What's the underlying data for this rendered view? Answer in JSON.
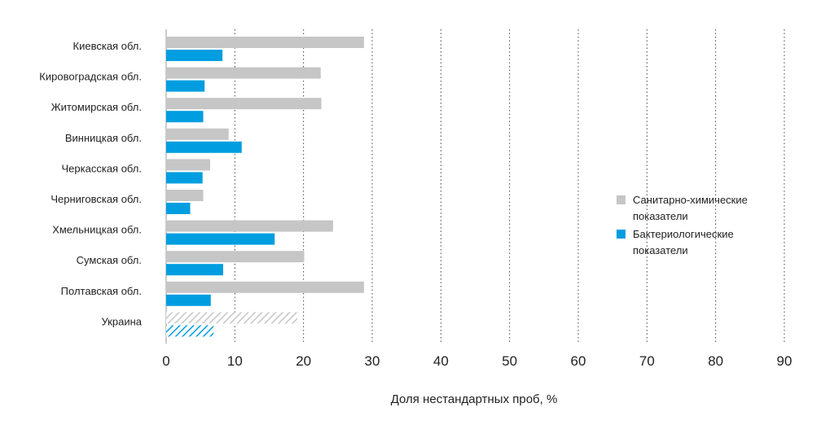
{
  "chart_data": {
    "type": "bar",
    "orientation": "horizontal",
    "categories": [
      "Киевская обл.",
      "Кировоградская обл.",
      "Житомирская обл.",
      "Винницкая обл.",
      "Черкасская обл.",
      "Черниговская обл.",
      "Хмельницкая обл.",
      "Сумская обл.",
      "Полтавская обл.",
      "Украина"
    ],
    "series": [
      {
        "name": "Санитарно-химические показатели",
        "color": "#c6c6c6",
        "values": [
          28.8,
          22.5,
          22.6,
          9.1,
          6.4,
          5.4,
          24.3,
          20.1,
          28.8,
          19.1
        ]
      },
      {
        "name": "Бактериологические показатели",
        "color": "#009ee0",
        "values": [
          8.2,
          5.6,
          5.4,
          11.0,
          5.3,
          3.5,
          15.8,
          8.3,
          6.5,
          6.9
        ]
      }
    ],
    "hatched_categories": [
      "Украина"
    ],
    "xlabel": "Доля нестандартных проб, %",
    "ylabel": "",
    "xlim": [
      0,
      90
    ],
    "xticks": [
      0,
      10,
      20,
      30,
      40,
      50,
      60,
      70,
      80,
      90
    ],
    "grid": "vertical dotted",
    "legend_position": "right",
    "legend": [
      {
        "lines": [
          "Санитарно-химические",
          "показатели"
        ],
        "color": "#c6c6c6"
      },
      {
        "lines": [
          "Бактериологические",
          "показатели"
        ],
        "color": "#009ee0"
      }
    ]
  }
}
